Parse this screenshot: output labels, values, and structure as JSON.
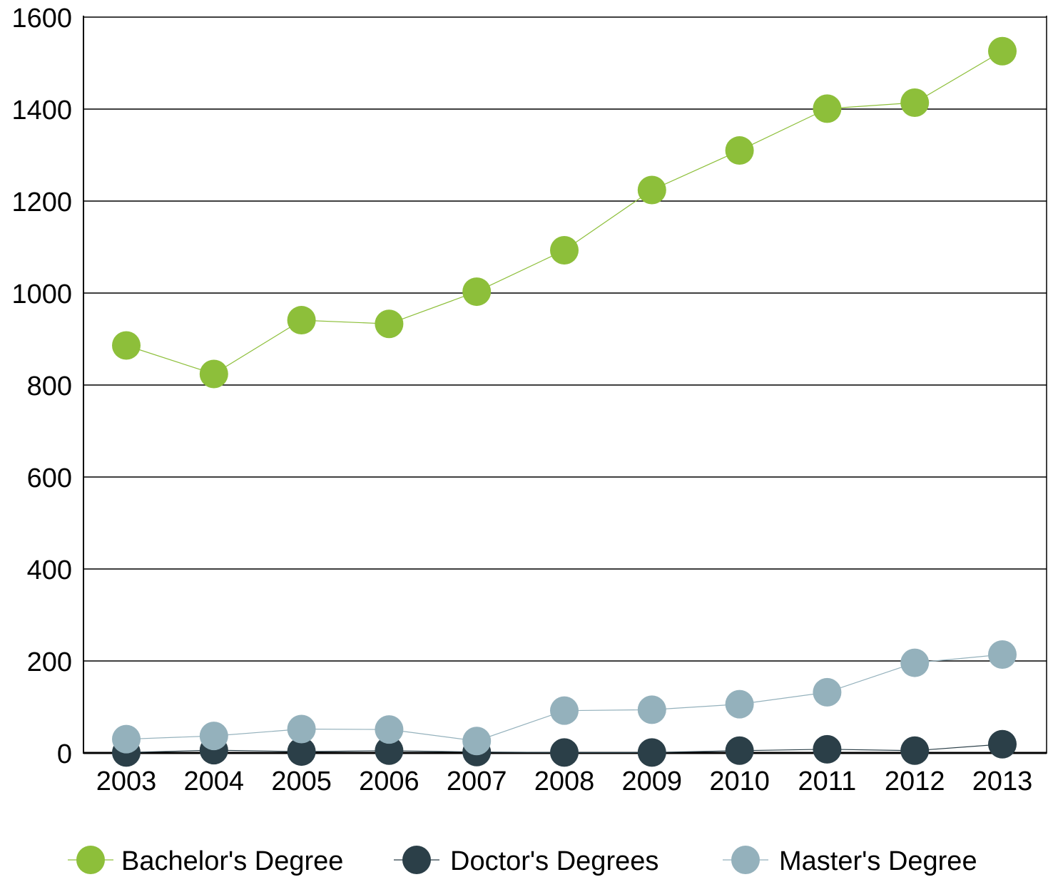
{
  "chart_data": {
    "type": "line",
    "title": "",
    "xlabel": "",
    "ylabel": "",
    "categories": [
      "2003",
      "2004",
      "2005",
      "2006",
      "2007",
      "2008",
      "2009",
      "2010",
      "2011",
      "2012",
      "2013"
    ],
    "ylim": [
      0,
      1600
    ],
    "yticks": [
      "0",
      "200",
      "400",
      "600",
      "800",
      "1000",
      "1200",
      "1400",
      "1600"
    ],
    "grid": "horizontal",
    "legend_position": "bottom",
    "series": [
      {
        "name": "Bachelor's Degree",
        "color": "#8dbf3a",
        "values": [
          886,
          824,
          941,
          933,
          1003,
          1093,
          1224,
          1310,
          1401,
          1414,
          1526
        ]
      },
      {
        "name": "Doctor's Degrees",
        "color": "#2b3f48",
        "values": [
          1,
          6,
          3,
          5,
          2,
          1,
          1,
          5,
          8,
          5,
          19
        ]
      },
      {
        "name": "Master's Degree",
        "color": "#94b1bc",
        "values": [
          30,
          37,
          52,
          51,
          26,
          92,
          94,
          106,
          132,
          196,
          214
        ]
      }
    ]
  }
}
